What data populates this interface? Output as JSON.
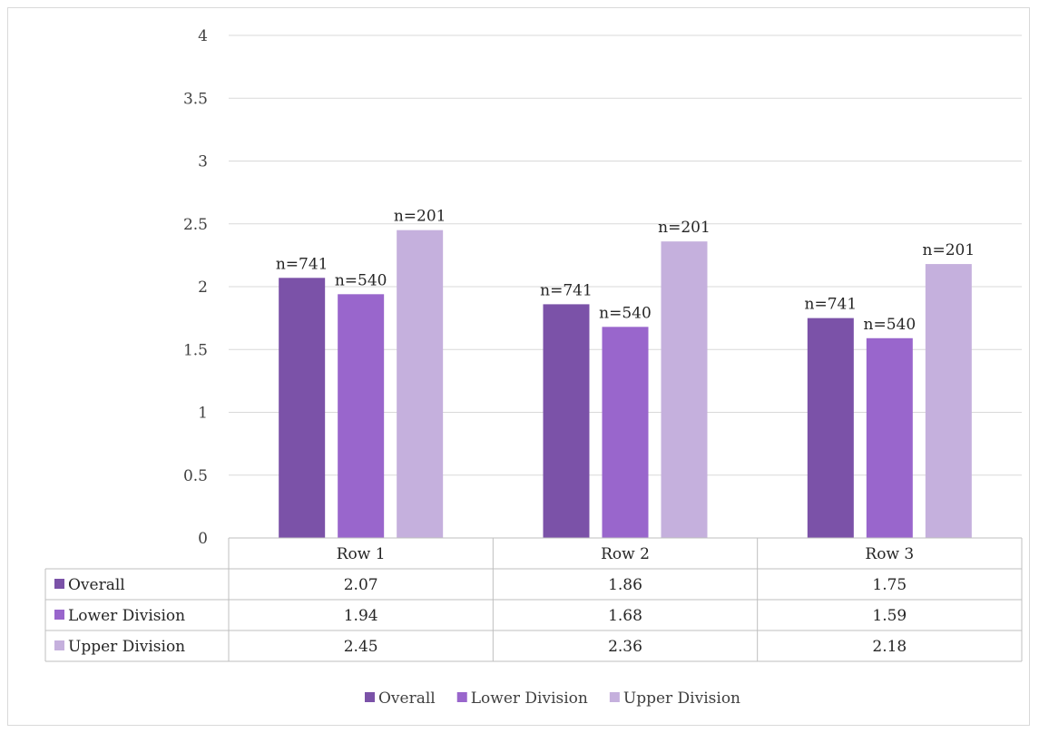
{
  "chart_data": {
    "type": "bar",
    "categories": [
      "Row 1",
      "Row 2",
      "Row 3"
    ],
    "series": [
      {
        "name": "Overall",
        "values": [
          2.07,
          1.86,
          1.75
        ],
        "color": "#7b52a8",
        "labels": [
          "n=741",
          "n=741",
          "n=741"
        ]
      },
      {
        "name": "Lower Division",
        "values": [
          1.94,
          1.68,
          1.59
        ],
        "color": "#9966cc",
        "labels": [
          "n=540",
          "n=540",
          "n=540"
        ]
      },
      {
        "name": "Upper Division",
        "values": [
          2.45,
          2.36,
          2.18
        ],
        "color": "#c5b0dd",
        "labels": [
          "n=201",
          "n=201",
          "n=201"
        ]
      }
    ],
    "ylim": [
      0,
      4
    ],
    "yticks": [
      "0",
      "0.5",
      "1",
      "1.5",
      "2",
      "2.5",
      "3",
      "3.5",
      "4"
    ],
    "table_values": [
      [
        "2.07",
        "1.86",
        "1.75"
      ],
      [
        "1.94",
        "1.68",
        "1.59"
      ],
      [
        "2.45",
        "2.36",
        "2.18"
      ]
    ],
    "grid": true,
    "legend_position": "bottom",
    "data_table": true
  }
}
